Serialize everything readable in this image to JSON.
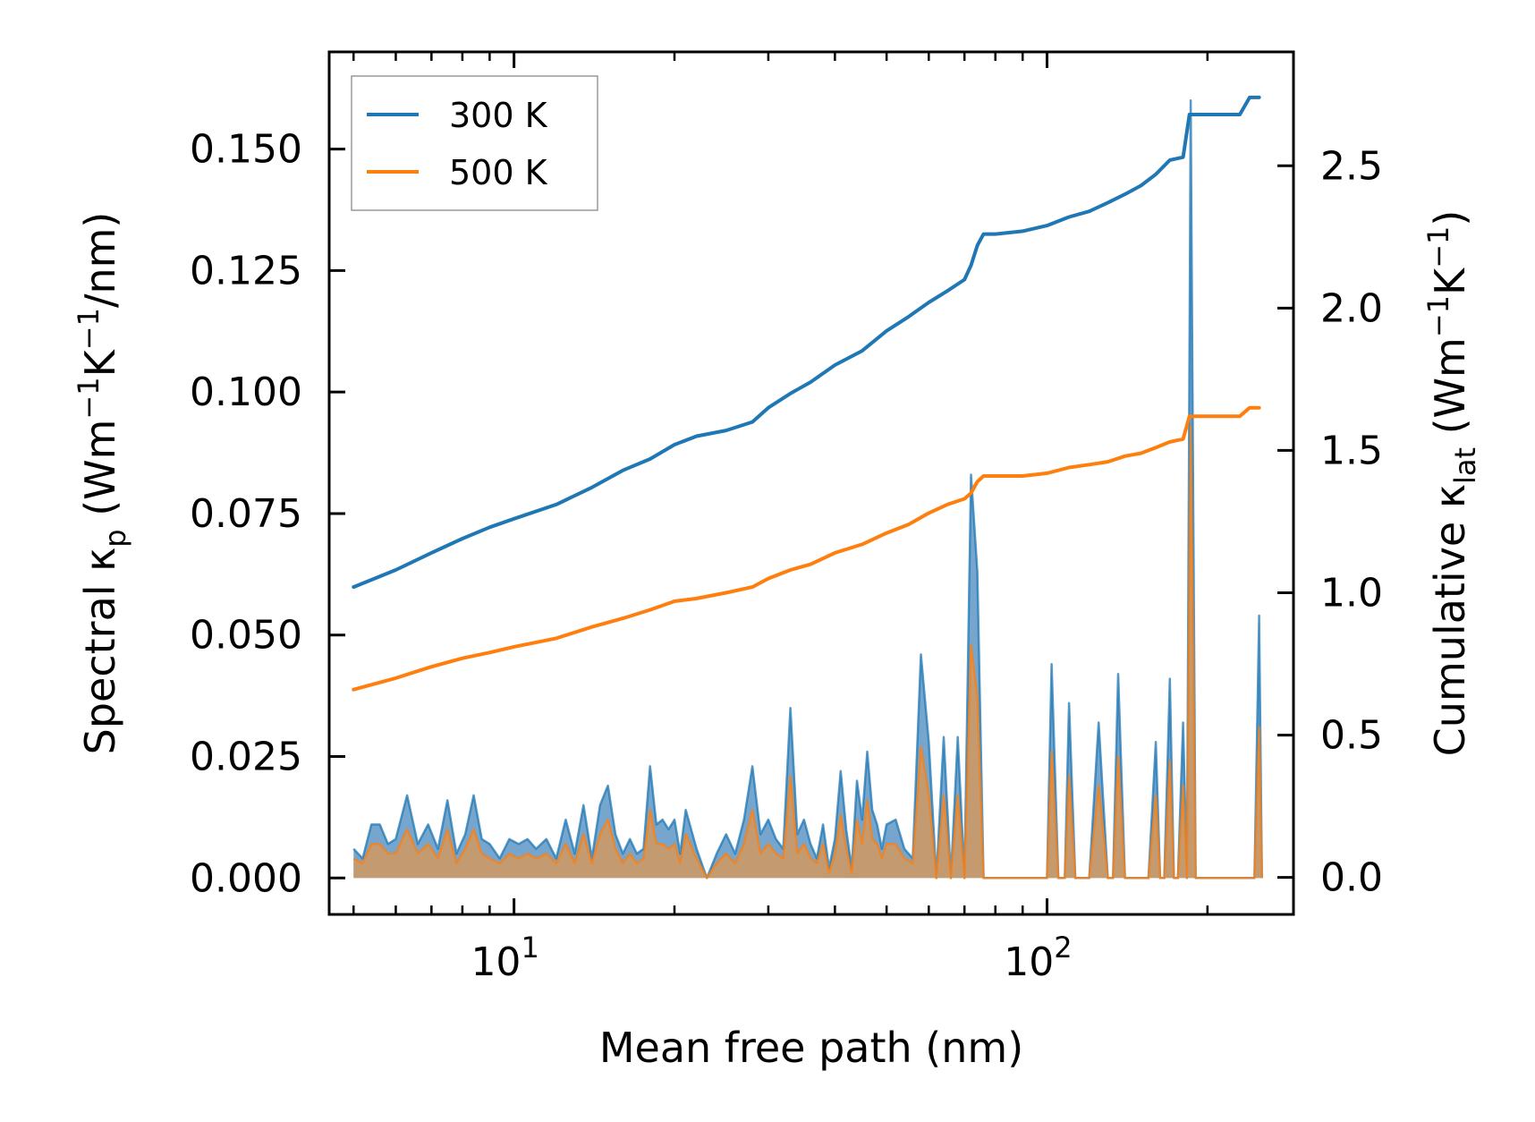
{
  "chart_data": {
    "type": "line",
    "xlabel": "Mean free path (nm)",
    "ylabel_left": "Spectral κp (Wm⁻¹K⁻¹/nm)",
    "ylabel_right": "Cumulative κlat (Wm⁻¹K⁻¹)",
    "xscale": "log",
    "xlim": [
      4.5,
      290
    ],
    "ylim_left": [
      -0.0075,
      0.17
    ],
    "ylim_right": [
      -0.13,
      2.9
    ],
    "x_tick_labels": [
      {
        "value": 10,
        "base": "10",
        "exp": "1"
      },
      {
        "value": 100,
        "base": "10",
        "exp": "2"
      }
    ],
    "yticks_left": [
      0.0,
      0.025,
      0.05,
      0.075,
      0.1,
      0.125,
      0.15
    ],
    "ytick_labels_left": [
      "0.000",
      "0.025",
      "0.050",
      "0.075",
      "0.100",
      "0.125",
      "0.150"
    ],
    "yticks_right": [
      0.0,
      0.5,
      1.0,
      1.5,
      2.0,
      2.5
    ],
    "ytick_labels_right": [
      "0.0",
      "0.5",
      "1.0",
      "1.5",
      "2.0",
      "2.5"
    ],
    "legend": {
      "position": "top-left",
      "entries": [
        "300 K",
        "500 K"
      ]
    },
    "colors": {
      "300 K": "#1f77b4",
      "500 K": "#ff7f0e",
      "fill_500": "#c89a6c"
    },
    "series": [
      {
        "name": "300 K",
        "axis": "right",
        "kind": "cumulative",
        "x": [
          5,
          6,
          7,
          8,
          9,
          10,
          12,
          14,
          16,
          18,
          20,
          22,
          25,
          28,
          30,
          33,
          36,
          40,
          45,
          50,
          55,
          60,
          65,
          70,
          72,
          74,
          76,
          80,
          90,
          100,
          110,
          120,
          130,
          140,
          150,
          160,
          170,
          180,
          185,
          190,
          200,
          230,
          240,
          250
        ],
        "y": [
          1.02,
          1.08,
          1.14,
          1.19,
          1.23,
          1.26,
          1.31,
          1.37,
          1.43,
          1.47,
          1.52,
          1.55,
          1.57,
          1.6,
          1.65,
          1.7,
          1.74,
          1.8,
          1.85,
          1.92,
          1.97,
          2.02,
          2.06,
          2.1,
          2.15,
          2.22,
          2.26,
          2.26,
          2.27,
          2.29,
          2.32,
          2.34,
          2.37,
          2.4,
          2.43,
          2.47,
          2.52,
          2.53,
          2.68,
          2.68,
          2.68,
          2.68,
          2.74,
          2.74
        ]
      },
      {
        "name": "500 K",
        "axis": "right",
        "kind": "cumulative",
        "x": [
          5,
          6,
          7,
          8,
          9,
          10,
          12,
          14,
          16,
          18,
          20,
          22,
          25,
          28,
          30,
          33,
          36,
          40,
          45,
          50,
          55,
          60,
          65,
          70,
          72,
          74,
          76,
          80,
          90,
          100,
          110,
          120,
          130,
          140,
          150,
          160,
          170,
          180,
          185,
          190,
          200,
          230,
          240,
          250
        ],
        "y": [
          0.66,
          0.7,
          0.74,
          0.77,
          0.79,
          0.81,
          0.84,
          0.88,
          0.91,
          0.94,
          0.97,
          0.98,
          1.0,
          1.02,
          1.05,
          1.08,
          1.1,
          1.14,
          1.17,
          1.21,
          1.24,
          1.28,
          1.31,
          1.33,
          1.35,
          1.39,
          1.41,
          1.41,
          1.41,
          1.42,
          1.44,
          1.45,
          1.46,
          1.48,
          1.49,
          1.51,
          1.53,
          1.54,
          1.62,
          1.62,
          1.62,
          1.62,
          1.65,
          1.65
        ]
      },
      {
        "name": "300 K",
        "axis": "left",
        "kind": "spectral",
        "x": [
          5.0,
          5.2,
          5.4,
          5.6,
          5.8,
          6.0,
          6.3,
          6.6,
          6.9,
          7.2,
          7.5,
          7.8,
          8.1,
          8.4,
          8.7,
          9.0,
          9.4,
          9.8,
          10.2,
          10.6,
          11.0,
          11.5,
          12.0,
          12.5,
          13.0,
          13.5,
          14.0,
          14.5,
          15.0,
          15.5,
          16.0,
          16.5,
          17.0,
          17.5,
          18.0,
          18.5,
          19.0,
          19.5,
          20.0,
          20.5,
          21.0,
          22.0,
          23.0,
          24.0,
          25.0,
          26.0,
          27.0,
          28.0,
          29.0,
          30.0,
          31.0,
          32.0,
          33.0,
          34.0,
          35.0,
          36.0,
          37.0,
          38.0,
          39.0,
          40.0,
          41.0,
          42.0,
          43.0,
          44.0,
          45.0,
          46.0,
          47.0,
          48.0,
          49.0,
          50.0,
          52.0,
          54.0,
          56.0,
          58.0,
          60.0,
          62.0,
          64.0,
          66.0,
          68.0,
          70.0,
          72.0,
          74.0,
          76.0,
          78.0,
          80.0,
          90.0,
          100.0,
          102.0,
          105.0,
          108.0,
          110.0,
          113.0,
          116.0,
          120.0,
          125.0,
          130.0,
          133.0,
          136.0,
          140.0,
          143.0,
          146.0,
          150.0,
          155.0,
          160.0,
          163.0,
          166.0,
          170.0,
          173.0,
          176.0,
          180.0,
          183.0,
          186.0,
          190.0,
          200.0,
          230.0,
          245.0,
          250.0,
          253.0
        ],
        "y": [
          0.006,
          0.004,
          0.011,
          0.011,
          0.007,
          0.008,
          0.017,
          0.007,
          0.011,
          0.006,
          0.016,
          0.005,
          0.009,
          0.017,
          0.008,
          0.007,
          0.004,
          0.008,
          0.007,
          0.008,
          0.006,
          0.008,
          0.004,
          0.012,
          0.005,
          0.015,
          0.004,
          0.015,
          0.019,
          0.009,
          0.005,
          0.008,
          0.005,
          0.006,
          0.023,
          0.011,
          0.012,
          0.01,
          0.012,
          0.005,
          0.014,
          0.006,
          0.0,
          0.005,
          0.009,
          0.005,
          0.012,
          0.023,
          0.009,
          0.012,
          0.008,
          0.006,
          0.035,
          0.009,
          0.012,
          0.007,
          0.004,
          0.011,
          0.002,
          0.008,
          0.022,
          0.01,
          0.002,
          0.02,
          0.012,
          0.026,
          0.014,
          0.011,
          0.006,
          0.011,
          0.012,
          0.006,
          0.004,
          0.046,
          0.028,
          0.0,
          0.029,
          0.0,
          0.029,
          0.0,
          0.083,
          0.063,
          0.0,
          0.0,
          0.0,
          0.0,
          0.0,
          0.044,
          0.0,
          0.0,
          0.036,
          0.0,
          0.0,
          0.0,
          0.032,
          0.0,
          0.0,
          0.042,
          0.0,
          0.0,
          0.0,
          0.0,
          0.0,
          0.028,
          0.0,
          0.0,
          0.041,
          0.0,
          0.0,
          0.032,
          0.0,
          0.16,
          0.0,
          0.0,
          0.0,
          0.0,
          0.054,
          0.0
        ]
      },
      {
        "name": "500 K",
        "axis": "left",
        "kind": "spectral",
        "x": [
          5.0,
          5.2,
          5.4,
          5.6,
          5.8,
          6.0,
          6.3,
          6.6,
          6.9,
          7.2,
          7.5,
          7.8,
          8.1,
          8.4,
          8.7,
          9.0,
          9.4,
          9.8,
          10.2,
          10.6,
          11.0,
          11.5,
          12.0,
          12.5,
          13.0,
          13.5,
          14.0,
          14.5,
          15.0,
          15.5,
          16.0,
          16.5,
          17.0,
          17.5,
          18.0,
          18.5,
          19.0,
          19.5,
          20.0,
          20.5,
          21.0,
          22.0,
          23.0,
          24.0,
          25.0,
          26.0,
          27.0,
          28.0,
          29.0,
          30.0,
          31.0,
          32.0,
          33.0,
          34.0,
          35.0,
          36.0,
          37.0,
          38.0,
          39.0,
          40.0,
          41.0,
          42.0,
          43.0,
          44.0,
          45.0,
          46.0,
          47.0,
          48.0,
          49.0,
          50.0,
          52.0,
          54.0,
          56.0,
          58.0,
          60.0,
          62.0,
          64.0,
          66.0,
          68.0,
          70.0,
          72.0,
          74.0,
          76.0,
          78.0,
          80.0,
          90.0,
          100.0,
          102.0,
          105.0,
          108.0,
          110.0,
          113.0,
          116.0,
          120.0,
          125.0,
          130.0,
          133.0,
          136.0,
          140.0,
          143.0,
          146.0,
          150.0,
          155.0,
          160.0,
          163.0,
          166.0,
          170.0,
          173.0,
          176.0,
          180.0,
          183.0,
          186.0,
          190.0,
          200.0,
          230.0,
          245.0,
          250.0,
          253.0
        ],
        "y": [
          0.004,
          0.003,
          0.007,
          0.007,
          0.005,
          0.005,
          0.01,
          0.005,
          0.007,
          0.004,
          0.01,
          0.003,
          0.006,
          0.01,
          0.005,
          0.004,
          0.003,
          0.005,
          0.004,
          0.005,
          0.004,
          0.005,
          0.003,
          0.007,
          0.003,
          0.009,
          0.003,
          0.009,
          0.012,
          0.006,
          0.003,
          0.005,
          0.003,
          0.004,
          0.014,
          0.007,
          0.007,
          0.006,
          0.007,
          0.003,
          0.009,
          0.004,
          0.0,
          0.003,
          0.005,
          0.003,
          0.007,
          0.014,
          0.005,
          0.007,
          0.005,
          0.004,
          0.021,
          0.005,
          0.007,
          0.004,
          0.003,
          0.007,
          0.001,
          0.005,
          0.013,
          0.006,
          0.001,
          0.012,
          0.007,
          0.016,
          0.008,
          0.007,
          0.004,
          0.007,
          0.007,
          0.004,
          0.003,
          0.027,
          0.017,
          0.0,
          0.017,
          0.0,
          0.017,
          0.0,
          0.048,
          0.037,
          0.0,
          0.0,
          0.0,
          0.0,
          0.0,
          0.026,
          0.0,
          0.0,
          0.021,
          0.0,
          0.0,
          0.0,
          0.019,
          0.0,
          0.0,
          0.025,
          0.0,
          0.0,
          0.0,
          0.0,
          0.0,
          0.017,
          0.0,
          0.0,
          0.024,
          0.0,
          0.0,
          0.019,
          0.0,
          0.093,
          0.0,
          0.0,
          0.0,
          0.0,
          0.031,
          0.0
        ]
      }
    ]
  }
}
